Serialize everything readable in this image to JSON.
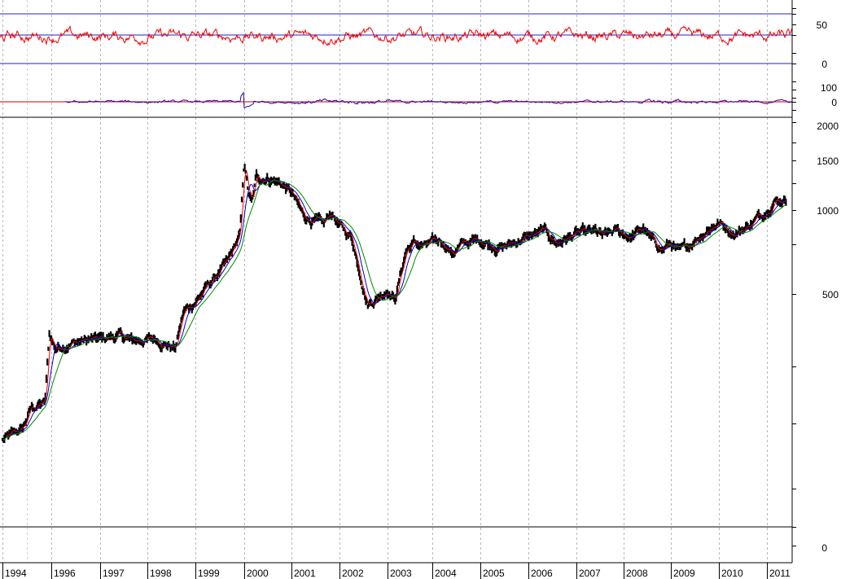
{
  "chart_data": {
    "type": "line",
    "x_axis": {
      "labels": [
        "1994",
        "1996",
        "1997",
        "1998",
        "1999",
        "2000",
        "2001",
        "2002",
        "2003",
        "2004",
        "2005",
        "2006",
        "2007",
        "2008",
        "2009",
        "2010",
        "2011"
      ],
      "grid": "dashed-vertical"
    },
    "panels": [
      {
        "name": "oscillator-top",
        "ticks": [
          "50",
          "0"
        ],
        "ylim": [
          0,
          100
        ],
        "reference_levels": [
          70,
          30,
          0
        ],
        "series": [
          {
            "color": "#ee0000",
            "level": 50,
            "range": [
              30,
              75
            ]
          }
        ]
      },
      {
        "name": "momentum",
        "ticks": [
          "100",
          "0"
        ],
        "ylim": [
          -100,
          100
        ],
        "reference_levels": [
          0
        ],
        "series": [
          {
            "color": "#3300aa",
            "level": 0
          }
        ]
      },
      {
        "name": "price",
        "scale": "log",
        "ticks": [
          "2000",
          "1500",
          "1000",
          "500",
          "0"
        ],
        "series": [
          {
            "style": "bars",
            "color": "#000000",
            "x": [
              "1994-01",
              "1994-06",
              "1995-03",
              "1995-10",
              "1995-12",
              "1996-02",
              "1996-08",
              "1997-01",
              "1997-06",
              "1997-09",
              "1998-03",
              "1998-08",
              "1998-10",
              "1999-01",
              "1999-06",
              "1999-09",
              "1999-12",
              "2000-01",
              "2000-02",
              "2000-03",
              "2000-04",
              "2000-07",
              "2000-10",
              "2001-01",
              "2001-04",
              "2001-09",
              "2001-11",
              "2002-01",
              "2002-04",
              "2002-08",
              "2002-10",
              "2003-01",
              "2003-03",
              "2003-06",
              "2003-08",
              "2003-11",
              "2004-03",
              "2004-06",
              "2004-09",
              "2005-01",
              "2005-06",
              "2005-09",
              "2006-01",
              "2006-05",
              "2006-08",
              "2007-01",
              "2007-06",
              "2007-08",
              "2007-11",
              "2008-03",
              "2008-06",
              "2008-08",
              "2008-11",
              "2009-01",
              "2009-03",
              "2009-06",
              "2009-10",
              "2010-01",
              "2010-05",
              "2010-08",
              "2010-12",
              "2011-03",
              "2011-06"
            ],
            "values": [
              150,
              165,
              195,
              205,
              360,
              320,
              340,
              345,
              355,
              340,
              345,
              320,
              430,
              470,
              580,
              650,
              820,
              1500,
              1150,
              1050,
              1300,
              1300,
              1250,
              1150,
              950,
              880,
              980,
              870,
              800,
              460,
              480,
              520,
              480,
              720,
              760,
              740,
              780,
              700,
              760,
              780,
              730,
              760,
              800,
              840,
              760,
              820,
              830,
              800,
              840,
              800,
              860,
              780,
              720,
              760,
              700,
              760,
              850,
              900,
              820,
              870,
              970,
              1080,
              1090
            ]
          },
          {
            "style": "line",
            "color": "#ee0000",
            "role": "moving-average-1"
          },
          {
            "style": "line",
            "color": "#0000cc",
            "role": "moving-average-2"
          },
          {
            "style": "line",
            "color": "#008800",
            "role": "moving-average-3"
          }
        ]
      }
    ]
  }
}
